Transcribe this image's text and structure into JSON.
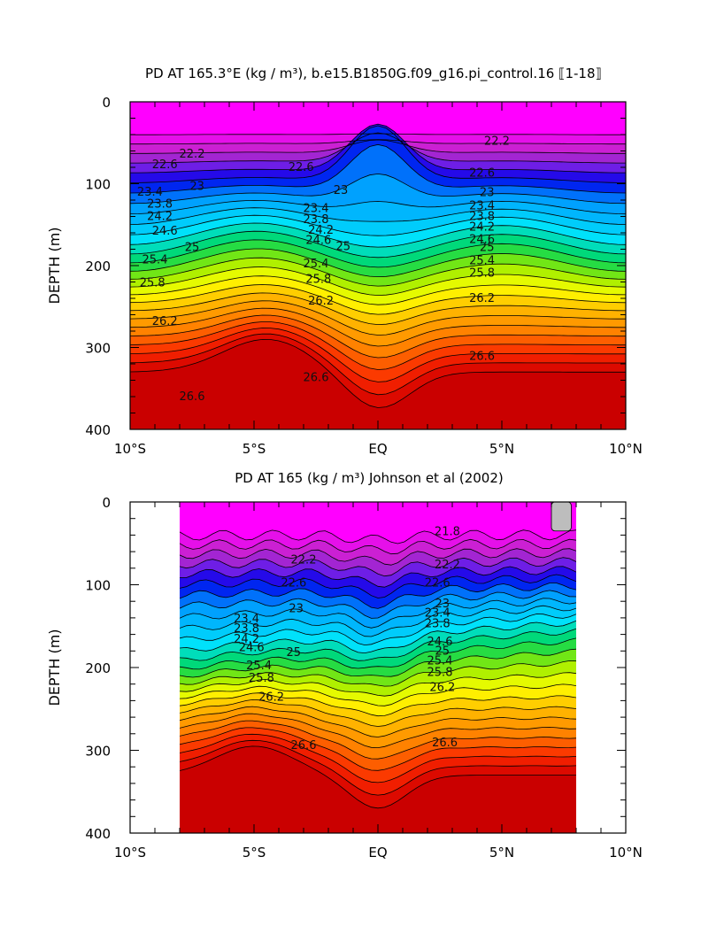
{
  "chart_data": [
    {
      "type": "contour",
      "title": "PD AT 165.3°E (kg / m³), b.e15.B1850G.f09_g16.pi_control.16 ⟦1-18⟧",
      "ylabel": "DEPTH (m)",
      "xlabel": "",
      "xlim": [
        -10,
        10
      ],
      "ylim": [
        400,
        0
      ],
      "x_ticks": [
        "10°S",
        "5°S",
        "EQ",
        "5°N",
        "10°N"
      ],
      "y_ticks": [
        "0",
        "100",
        "200",
        "300",
        "400"
      ],
      "data_x_range": [
        -10,
        10
      ],
      "contour_levels": [
        21.4,
        21.6,
        21.8,
        22.0,
        22.2,
        22.4,
        22.6,
        22.8,
        23.0,
        23.2,
        23.4,
        23.6,
        23.8,
        24.0,
        24.2,
        24.4,
        24.6,
        24.8,
        25.0,
        25.2,
        25.4,
        25.6,
        25.8,
        26.0,
        26.2,
        26.4,
        26.6
      ],
      "contour_labels": [
        {
          "text": "22.2",
          "x": -7.5,
          "y": 64
        },
        {
          "text": "22.6",
          "x": -8.6,
          "y": 77
        },
        {
          "text": "23.4",
          "x": -9.2,
          "y": 110
        },
        {
          "text": "23.8",
          "x": -8.8,
          "y": 125
        },
        {
          "text": "23",
          "x": -7.3,
          "y": 103
        },
        {
          "text": "24.2",
          "x": -8.8,
          "y": 140
        },
        {
          "text": "24.6",
          "x": -8.6,
          "y": 158
        },
        {
          "text": "25",
          "x": -7.5,
          "y": 178
        },
        {
          "text": "25.4",
          "x": -9.0,
          "y": 193
        },
        {
          "text": "25.8",
          "x": -9.1,
          "y": 221
        },
        {
          "text": "26.2",
          "x": -8.6,
          "y": 268
        },
        {
          "text": "26.6",
          "x": -7.5,
          "y": 360
        },
        {
          "text": "22.6",
          "x": -3.1,
          "y": 80
        },
        {
          "text": "23",
          "x": -1.5,
          "y": 108
        },
        {
          "text": "23.4",
          "x": -2.5,
          "y": 130
        },
        {
          "text": "23.8",
          "x": -2.5,
          "y": 144
        },
        {
          "text": "24.2",
          "x": -2.3,
          "y": 157
        },
        {
          "text": "24.6",
          "x": -2.4,
          "y": 169
        },
        {
          "text": "25",
          "x": -1.4,
          "y": 177
        },
        {
          "text": "25.4",
          "x": -2.5,
          "y": 198
        },
        {
          "text": "25.8",
          "x": -2.4,
          "y": 217
        },
        {
          "text": "26.2",
          "x": -2.3,
          "y": 243
        },
        {
          "text": "26.6",
          "x": -2.5,
          "y": 337
        },
        {
          "text": "22.2",
          "x": 4.8,
          "y": 48
        },
        {
          "text": "22.6",
          "x": 4.2,
          "y": 87
        },
        {
          "text": "23",
          "x": 4.4,
          "y": 111
        },
        {
          "text": "23.4",
          "x": 4.2,
          "y": 127
        },
        {
          "text": "23.8",
          "x": 4.2,
          "y": 140
        },
        {
          "text": "24.2",
          "x": 4.2,
          "y": 153
        },
        {
          "text": "24.6",
          "x": 4.2,
          "y": 168
        },
        {
          "text": "25",
          "x": 4.4,
          "y": 178
        },
        {
          "text": "25.4",
          "x": 4.2,
          "y": 194
        },
        {
          "text": "25.8",
          "x": 4.2,
          "y": 209
        },
        {
          "text": "26.2",
          "x": 4.2,
          "y": 240
        },
        {
          "text": "26.6",
          "x": 4.2,
          "y": 311
        }
      ]
    },
    {
      "type": "contour",
      "title": "PD AT 165 (kg / m³) Johnson et al (2002)",
      "ylabel": "DEPTH (m)",
      "xlabel": "",
      "xlim": [
        -10,
        10
      ],
      "ylim": [
        400,
        0
      ],
      "x_ticks": [
        "10°S",
        "5°S",
        "EQ",
        "5°N",
        "10°N"
      ],
      "y_ticks": [
        "0",
        "100",
        "200",
        "300",
        "400"
      ],
      "data_x_range": [
        -8,
        8
      ],
      "contour_levels": [
        21.4,
        21.6,
        21.8,
        22.0,
        22.2,
        22.4,
        22.6,
        22.8,
        23.0,
        23.2,
        23.4,
        23.6,
        23.8,
        24.0,
        24.2,
        24.4,
        24.6,
        24.8,
        25.0,
        25.2,
        25.4,
        25.6,
        25.8,
        26.0,
        26.2,
        26.4,
        26.6
      ],
      "contour_labels": [
        {
          "text": "21.8",
          "x": 2.8,
          "y": 36
        },
        {
          "text": "22.2",
          "x": -3.0,
          "y": 70
        },
        {
          "text": "22.2",
          "x": 2.8,
          "y": 76
        },
        {
          "text": "22.6",
          "x": -3.4,
          "y": 98
        },
        {
          "text": "22.6",
          "x": 2.4,
          "y": 98
        },
        {
          "text": "23",
          "x": -3.3,
          "y": 129
        },
        {
          "text": "23",
          "x": 2.6,
          "y": 123
        },
        {
          "text": "23.4",
          "x": -5.3,
          "y": 141
        },
        {
          "text": "23.4",
          "x": 2.4,
          "y": 134
        },
        {
          "text": "23.8",
          "x": -5.3,
          "y": 153
        },
        {
          "text": "23.8",
          "x": 2.4,
          "y": 147
        },
        {
          "text": "24.2",
          "x": -5.3,
          "y": 166
        },
        {
          "text": "24.6",
          "x": -5.1,
          "y": 176
        },
        {
          "text": "24.6",
          "x": 2.5,
          "y": 169
        },
        {
          "text": "25",
          "x": -3.4,
          "y": 182
        },
        {
          "text": "25",
          "x": 2.6,
          "y": 180
        },
        {
          "text": "25.4",
          "x": -4.8,
          "y": 198
        },
        {
          "text": "25.4",
          "x": 2.5,
          "y": 192
        },
        {
          "text": "25.8",
          "x": -4.7,
          "y": 213
        },
        {
          "text": "25.8",
          "x": 2.5,
          "y": 206
        },
        {
          "text": "26.2",
          "x": -4.3,
          "y": 236
        },
        {
          "text": "26.2",
          "x": 2.6,
          "y": 224
        },
        {
          "text": "26.6",
          "x": -3.0,
          "y": 294
        },
        {
          "text": "26.6",
          "x": 2.7,
          "y": 291
        }
      ],
      "missing_data_patch": {
        "x": [
          7,
          7.8
        ],
        "y": [
          0,
          35
        ]
      }
    }
  ]
}
